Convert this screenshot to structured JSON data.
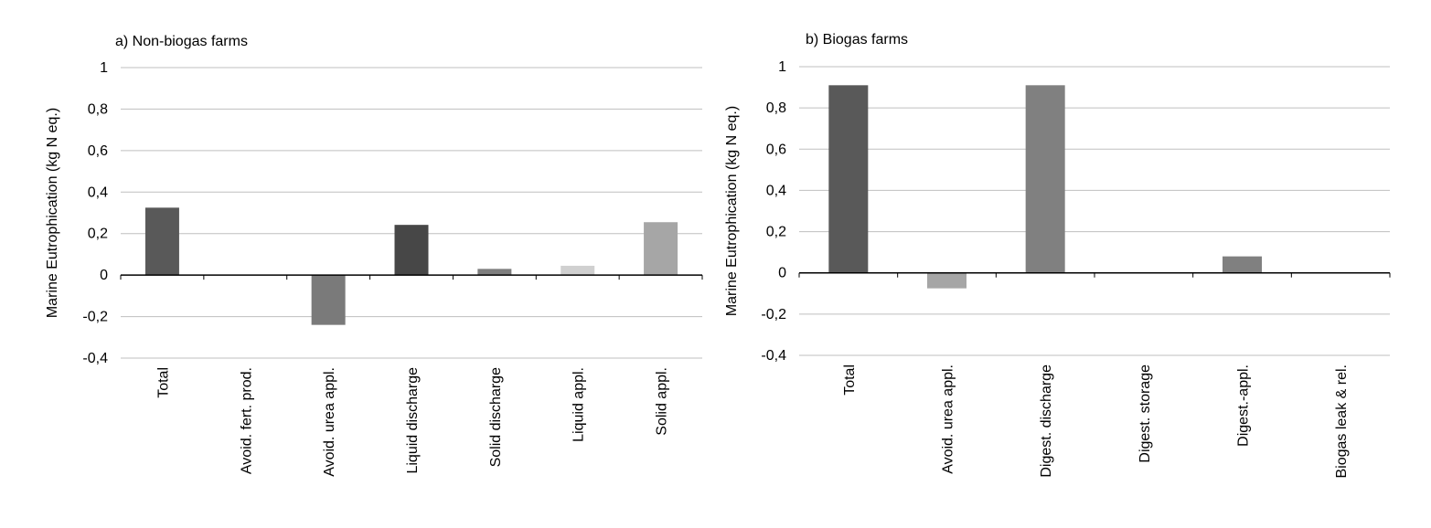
{
  "chart_data": [
    {
      "type": "bar",
      "title": "a) Non-biogas farms",
      "ylabel": "Marine Eutrophication (kg N eq.)",
      "xlabel": "",
      "ylim": [
        -0.4,
        1
      ],
      "yticks": [
        1,
        0.8,
        0.6,
        0.4,
        0.2,
        0,
        -0.2,
        -0.4
      ],
      "ytick_labels": [
        "1",
        "0,8",
        "0,6",
        "0,4",
        "0,2",
        "0",
        "-0,2",
        "-0,4"
      ],
      "grid": true,
      "categories": [
        "Total",
        "Avoid. fert. prod.",
        "Avoid. urea appl.",
        "Liquid discharge",
        "Solid discharge",
        "Liquid appl.",
        "Solid appl."
      ],
      "values": [
        0.325,
        0.0,
        -0.24,
        0.242,
        0.03,
        0.045,
        0.255
      ],
      "colors": [
        "#595959",
        "#7f7f7f",
        "#7a7a7a",
        "#474747",
        "#7f7f7f",
        "#d0d0d0",
        "#a6a6a6"
      ]
    },
    {
      "type": "bar",
      "title": "b) Biogas farms",
      "ylabel": "Marine Eutrophication (kg N eq.)",
      "xlabel": "",
      "ylim": [
        -0.4,
        1
      ],
      "yticks": [
        1,
        0.8,
        0.6,
        0.4,
        0.2,
        0,
        -0.2,
        -0.4
      ],
      "ytick_labels": [
        "1",
        "0,8",
        "0,6",
        "0,4",
        "0,2",
        "0",
        "-0,2",
        "-0,4"
      ],
      "grid": true,
      "categories": [
        "Total",
        "Avoid. urea appl.",
        "Digest. discharge",
        "Digest. storage",
        "Digest.-appl.",
        "Biogas leak & rel."
      ],
      "values": [
        0.91,
        -0.075,
        0.91,
        0.003,
        0.08,
        0.003
      ],
      "colors": [
        "#595959",
        "#a6a6a6",
        "#808080",
        "#6e6e6e",
        "#808080",
        "#6e6e6e"
      ]
    }
  ]
}
